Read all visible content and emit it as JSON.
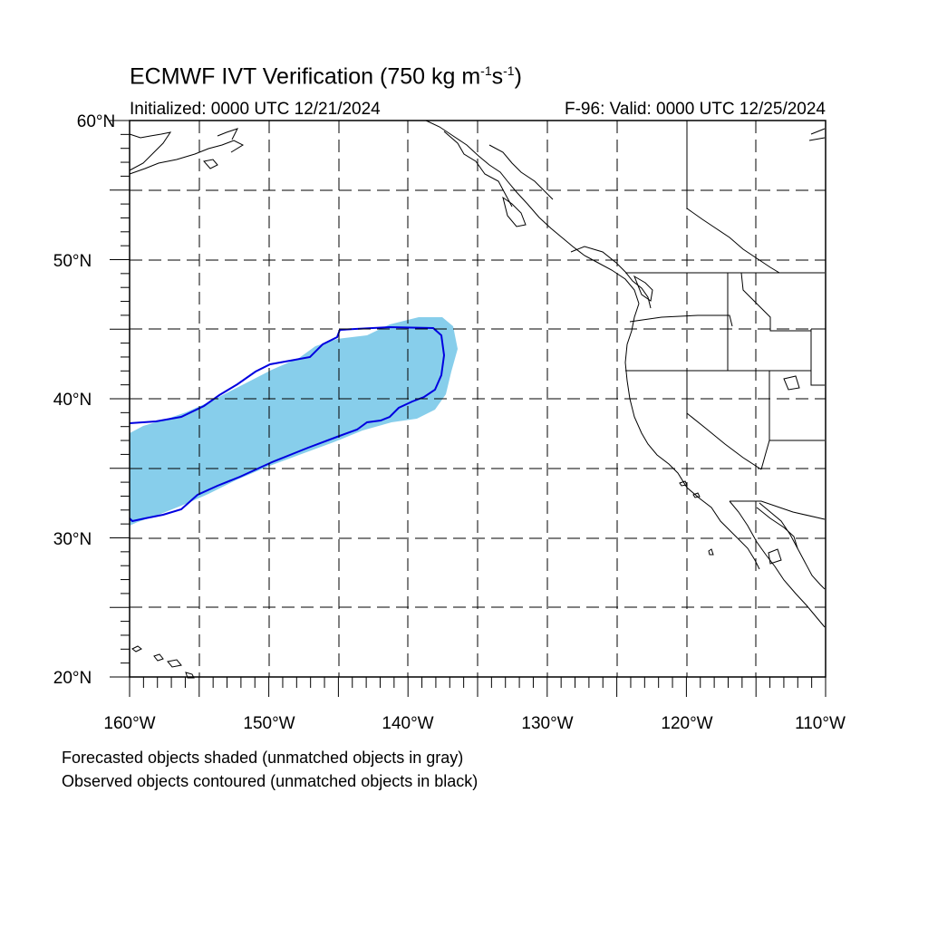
{
  "title": {
    "main_prefix": "ECMWF IVT Verification (750 kg m",
    "sup1": "-1",
    "mid": "s",
    "sup2": "-1",
    "suffix": ")",
    "initialized": "Initialized: 0000 UTC 12/21/2024",
    "valid": "F-96: Valid: 0000 UTC 12/25/2024"
  },
  "axes": {
    "lat_labels": [
      "60°N",
      "50°N",
      "40°N",
      "30°N",
      "20°N"
    ],
    "lon_labels": [
      "160°W",
      "150°W",
      "140°W",
      "130°W",
      "120°W",
      "110°W"
    ]
  },
  "captions": {
    "line1": "Forecasted objects shaded (unmatched objects in gray)",
    "line2": "Observed objects contoured (unmatched objects in black)"
  },
  "colors": {
    "forecast_fill": "#87ceeb",
    "observed_contour": "#0000e0",
    "coastline": "#000000",
    "grid": "#000000"
  }
}
